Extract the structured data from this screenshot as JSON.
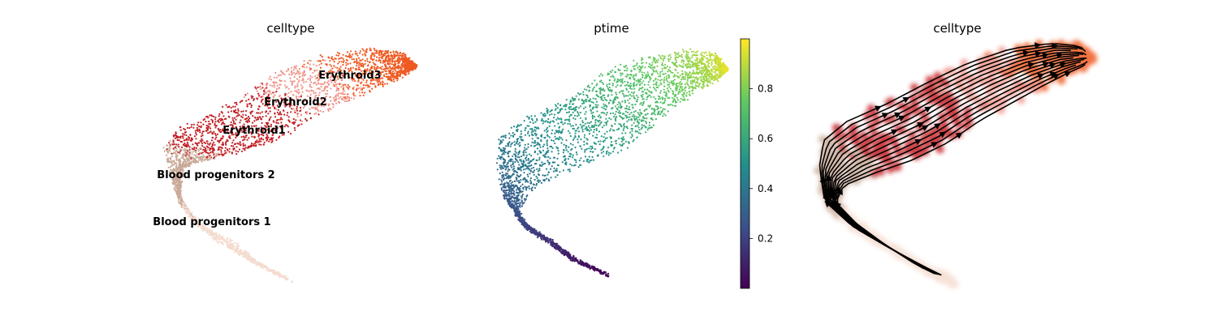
{
  "chart_data": [
    {
      "type": "scatter",
      "title": "celltype",
      "colored_by": "celltype",
      "legend_placement": "on data",
      "grid": false,
      "clusters": [
        {
          "name": "Blood progenitors 1",
          "color": "#f4dccf"
        },
        {
          "name": "Blood progenitors 2",
          "color": "#c9aa98"
        },
        {
          "name": "Erythroid1",
          "color": "#c21f24"
        },
        {
          "name": "Erythroid2",
          "color": "#f0948a"
        },
        {
          "name": "Erythroid3",
          "color": "#ef5a22"
        }
      ]
    },
    {
      "type": "scatter",
      "title": "ptime",
      "colored_by": "ptime",
      "colormap": "viridis",
      "grid": false,
      "colorbar": {
        "range": [
          0.0,
          1.0
        ],
        "ticks": [
          0.2,
          0.4,
          0.6,
          0.8
        ],
        "tick_labels": [
          "0.2",
          "0.4",
          "0.6",
          "0.8"
        ]
      }
    },
    {
      "type": "scatter",
      "title": "celltype",
      "colored_by": "celltype",
      "overlay": "streamlines with arrows",
      "grid": false
    }
  ]
}
